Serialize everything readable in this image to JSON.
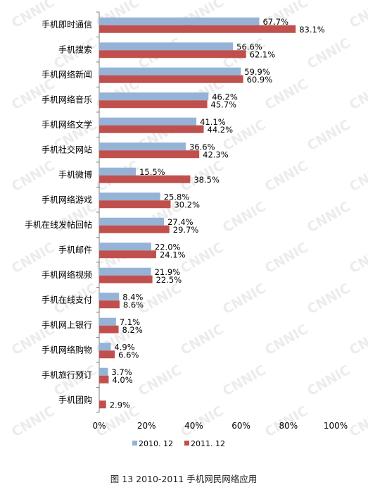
{
  "chart_data": {
    "type": "bar",
    "orientation": "horizontal",
    "categories": [
      "手机即时通信",
      "手机搜索",
      "手机网络新闻",
      "手机网络音乐",
      "手机网络文学",
      "手机社交网站",
      "手机微博",
      "手机网络游戏",
      "手机在线发帖回帖",
      "手机邮件",
      "手机网络视频",
      "手机在线支付",
      "手机网上银行",
      "手机网络购物",
      "手机旅行预订",
      "手机团购"
    ],
    "series": [
      {
        "name": "2010. 12",
        "color": "#95B3D7",
        "values": [
          67.7,
          56.6,
          59.9,
          46.2,
          41.1,
          36.6,
          15.5,
          25.8,
          27.4,
          22.0,
          21.9,
          8.4,
          7.1,
          4.9,
          3.7,
          null
        ],
        "labels": [
          "67.7%",
          "56.6%",
          "59.9%",
          "46.2%",
          "41.1%",
          "36.6%",
          "15.5%",
          "25.8%",
          "27.4%",
          "22.0%",
          "21.9%",
          "8.4%",
          "7.1%",
          "4.9%",
          "3.7%",
          ""
        ]
      },
      {
        "name": "2011. 12",
        "color": "#C0504D",
        "values": [
          83.1,
          62.1,
          60.9,
          45.7,
          44.2,
          42.3,
          38.5,
          30.2,
          29.7,
          24.1,
          22.5,
          8.6,
          8.2,
          6.6,
          4.0,
          2.9
        ],
        "labels": [
          "83.1%",
          "62.1%",
          "60.9%",
          "45.7%",
          "44.2%",
          "42.3%",
          "38.5%",
          "30.2%",
          "29.7%",
          "24.1%",
          "22.5%",
          "8.6%",
          "8.2%",
          "6.6%",
          "4.0%",
          "2.9%"
        ]
      }
    ],
    "xlim": [
      0,
      100
    ],
    "xticks": [
      "0%",
      "20%",
      "40%",
      "60%",
      "80%",
      "100%"
    ],
    "grid": false,
    "legend_position": "bottom",
    "watermark": "CNNIC"
  },
  "caption": "图 13 2010-2011 手机网民网络应用"
}
